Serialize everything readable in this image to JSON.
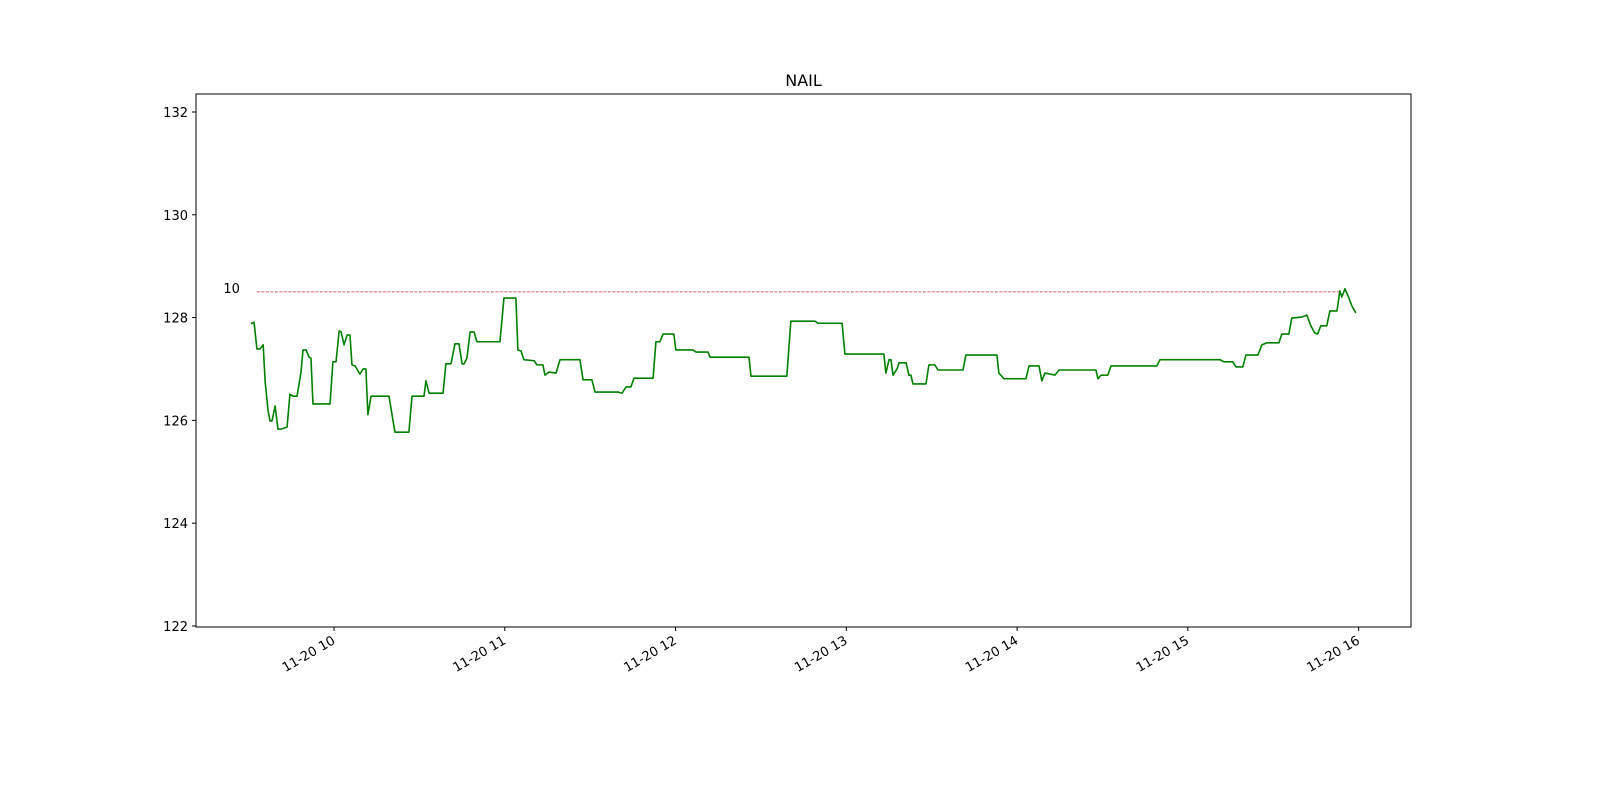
{
  "chart_data": {
    "type": "line",
    "title": "NAIL",
    "x": [
      570.8,
      571.9,
      572.9,
      574.0,
      575.1,
      575.8,
      576.8,
      577.5,
      578.2,
      579.3,
      580.3,
      581.4,
      582.4,
      583.5,
      584.5,
      585.6,
      587.0,
      588.4,
      589.1,
      590.2,
      591.2,
      591.9,
      592.6,
      594.4,
      598.6,
      599.6,
      600.7,
      601.8,
      602.5,
      603.5,
      604.6,
      605.6,
      606.3,
      607.4,
      609.1,
      610.2,
      611.2,
      611.9,
      613.0,
      614.1,
      619.3,
      621.4,
      626.3,
      627.4,
      631.6,
      632.3,
      633.4,
      638.3,
      639.3,
      641.1,
      642.5,
      643.9,
      645.0,
      645.7,
      646.7,
      647.8,
      649.2,
      650.2,
      658.3,
      659.7,
      663.9,
      664.6,
      665.7,
      666.7,
      670.3,
      671.3,
      673.4,
      674.1,
      675.5,
      678.0,
      679.4,
      686.4,
      687.5,
      690.6,
      691.7,
      699.8,
      701.2,
      702.6,
      704.3,
      705.4,
      712.1,
      713.1,
      714.5,
      715.6,
      719.4,
      720.1,
      726.1,
      727.2,
      731.4,
      732.1,
      745.8,
      746.5,
      759.1,
      760.5,
      769.0,
      770.0,
      778.5,
      779.5,
      793.2,
      793.9,
      795.0,
      795.7,
      796.4,
      797.8,
      798.5,
      801.0,
      802.0,
      802.7,
      803.4,
      808.0,
      809.0,
      811.1,
      812.2,
      821.0,
      822.0,
      832.9,
      833.6,
      835.4,
      843.1,
      844.2,
      847.7,
      848.7,
      849.8,
      853.3,
      854.7,
      867.7,
      868.4,
      869.5,
      871.9,
      873.0,
      889.1,
      890.2,
      911.3,
      912.7,
      915.8,
      916.9,
      919.3,
      920.4,
      924.6,
      926.0,
      927.8,
      932.0,
      933.0,
      935.5,
      936.5,
      940.1,
      941.8,
      943.2,
      944.6,
      945.6,
      946.7,
      948.8,
      949.9,
      952.4,
      953.4,
      954.1,
      955.2,
      956.6,
      957.6,
      959.0
    ],
    "values": [
      127.88,
      127.91,
      127.39,
      127.39,
      127.47,
      126.75,
      126.2,
      125.99,
      125.99,
      126.28,
      125.83,
      125.83,
      125.85,
      125.87,
      126.51,
      126.47,
      126.47,
      126.94,
      127.37,
      127.37,
      127.23,
      127.21,
      126.32,
      126.32,
      126.32,
      127.14,
      127.14,
      127.74,
      127.72,
      127.47,
      127.66,
      127.66,
      127.08,
      127.06,
      126.9,
      127.0,
      127.0,
      126.11,
      126.47,
      126.47,
      126.47,
      125.77,
      125.77,
      126.47,
      126.47,
      126.77,
      126.53,
      126.53,
      127.1,
      127.1,
      127.49,
      127.49,
      127.1,
      127.1,
      127.21,
      127.72,
      127.72,
      127.53,
      127.53,
      128.38,
      128.38,
      127.37,
      127.35,
      127.18,
      127.16,
      127.08,
      127.08,
      126.88,
      126.94,
      126.92,
      127.18,
      127.18,
      126.79,
      126.79,
      126.55,
      126.55,
      126.53,
      126.65,
      126.65,
      126.82,
      126.82,
      127.53,
      127.53,
      127.68,
      127.68,
      127.37,
      127.37,
      127.33,
      127.33,
      127.23,
      127.23,
      126.86,
      126.86,
      127.93,
      127.93,
      127.89,
      127.89,
      127.29,
      127.29,
      126.92,
      127.18,
      127.18,
      126.88,
      127.0,
      127.12,
      127.12,
      126.88,
      126.88,
      126.71,
      126.71,
      127.08,
      127.08,
      126.98,
      126.98,
      127.27,
      127.27,
      126.92,
      126.81,
      126.81,
      127.06,
      127.06,
      126.77,
      126.92,
      126.88,
      126.98,
      126.98,
      126.81,
      126.88,
      126.88,
      127.06,
      127.06,
      127.18,
      127.18,
      127.14,
      127.14,
      127.04,
      127.04,
      127.27,
      127.27,
      127.47,
      127.51,
      127.51,
      127.68,
      127.68,
      127.99,
      128.01,
      128.05,
      127.84,
      127.7,
      127.68,
      127.84,
      127.84,
      128.13,
      128.13,
      128.52,
      128.4,
      128.56,
      128.38,
      128.23,
      128.09
    ],
    "color": "#008000",
    "xlim": [
      551.5,
      978.4
    ],
    "xticks": [
      {
        "value": 600,
        "label": "11-20 10"
      },
      {
        "value": 660,
        "label": "11-20 11"
      },
      {
        "value": 720,
        "label": "11-20 12"
      },
      {
        "value": 780,
        "label": "11-20 13"
      },
      {
        "value": 840,
        "label": "11-20 14"
      },
      {
        "value": 900,
        "label": "11-20 15"
      },
      {
        "value": 960,
        "label": "11-20 16"
      }
    ],
    "ylim": [
      121.98,
      132.35
    ],
    "yticks": [
      122,
      124,
      126,
      128,
      130,
      132
    ],
    "hlines": [
      {
        "y": 128.5,
        "xmin": 572.9,
        "xmax": 953.4,
        "label": "10",
        "color": "#d62728"
      }
    ]
  }
}
